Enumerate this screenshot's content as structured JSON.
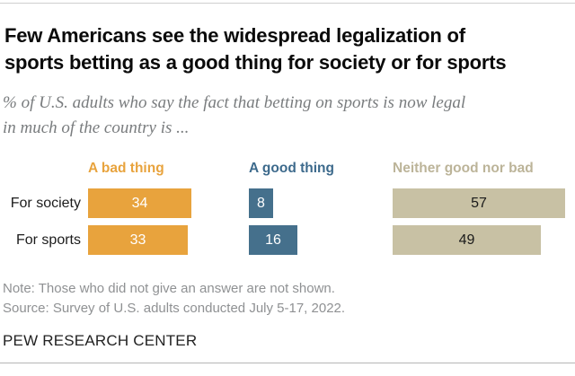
{
  "header": {
    "title_lines": [
      "Few Americans see the widespread legalization of",
      "sports betting as a good thing for society or for sports"
    ],
    "subtitle_lines": [
      "% of U.S. adults who say the fact that betting on sports is now legal",
      "in much of the country is ..."
    ]
  },
  "chart_data": {
    "type": "bar",
    "orientation": "horizontal",
    "unit": "% of U.S. adults",
    "categories": [
      "For society",
      "For sports"
    ],
    "series": [
      {
        "name": "A bad thing",
        "color": "#e8a33d",
        "header_color": "#e8a33d",
        "value_label_color": "#ffffff",
        "values": [
          34,
          33
        ]
      },
      {
        "name": "A good thing",
        "color": "#45708c",
        "header_color": "#3d6a8c",
        "value_label_color": "#ffffff",
        "values": [
          8,
          16
        ]
      },
      {
        "name": "Neither good nor bad",
        "color": "#c8c1a4",
        "header_color": "#bcb499",
        "value_label_color": "#1a1a1a",
        "values": [
          57,
          49
        ]
      }
    ],
    "xlim": [
      0,
      60
    ],
    "grid": false,
    "legend_position": "column-headers",
    "value_labels": "inside-center"
  },
  "footer": {
    "note": "Note: Those who did not give an answer are not shown.",
    "source": "Source: Survey of U.S. adults conducted July 5-17, 2022.",
    "brand": "PEW RESEARCH CENTER"
  }
}
